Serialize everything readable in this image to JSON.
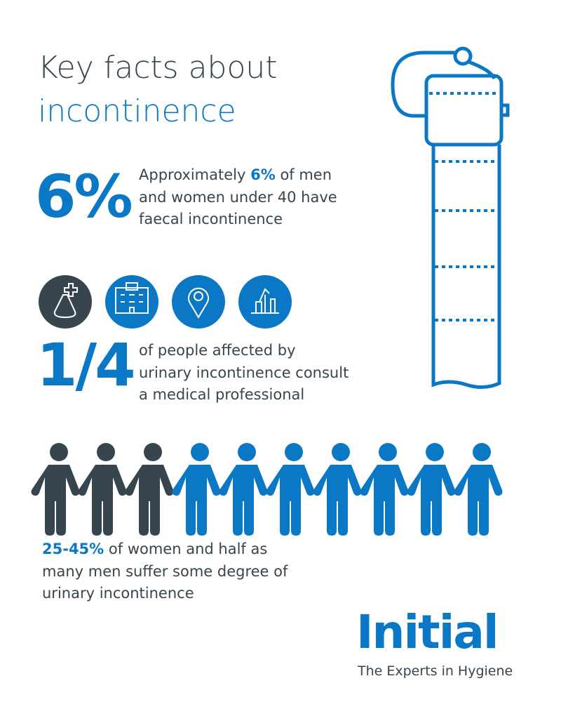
{
  "header": {
    "title_line1": "Key facts about",
    "title_line2": "incontinence"
  },
  "facts": [
    {
      "big": "6%",
      "lines": [
        {
          "before": "Approximately",
          "highlight": "6%",
          "after": "of men"
        },
        "and women under 40 have",
        "faecal incontinence"
      ]
    },
    {
      "big": "1/4",
      "lines": [
        "of people affected by",
        "urinary incontinence consult",
        "a medical professional"
      ]
    },
    {
      "lines": [
        {
          "highlight": "25-45%",
          "after": "of women and half as"
        },
        "many men suffer some degree of",
        "urinary incontinence"
      ]
    }
  ],
  "logo": {
    "name": "Initial",
    "tagline": "The Experts in Hygiene"
  }
}
